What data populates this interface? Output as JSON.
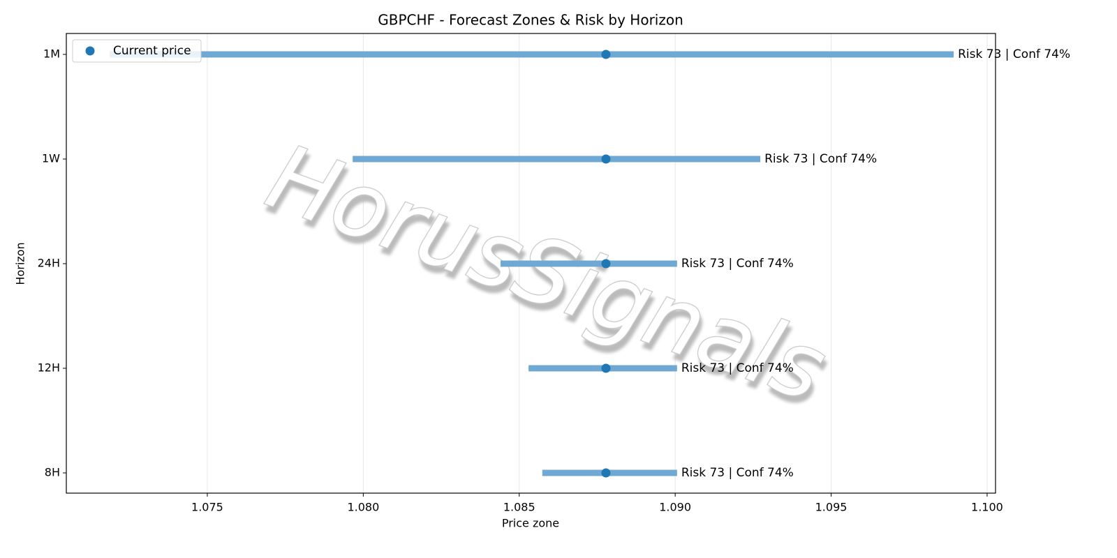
{
  "chart_data": {
    "type": "range",
    "title": "GBPCHF - Forecast Zones & Risk by Horizon",
    "x_label": "Price zone",
    "y_label": "Horizon",
    "watermark": "HorusSignals",
    "categories": [
      "1M",
      "1W",
      "24H",
      "12H",
      "8H"
    ],
    "low": [
      1.07187,
      1.07966,
      1.0844,
      1.0853,
      1.08574
    ],
    "high": [
      1.09893,
      1.09273,
      1.09006,
      1.09006,
      1.09006
    ],
    "color": "#6fa8d3",
    "annotations": [
      "Risk 73 | Conf 74%",
      "Risk 73 | Conf 74%",
      "Risk 73 | Conf 74%",
      "Risk 73 | Conf 74%",
      "Risk 73 | Conf 74%"
    ],
    "series": [
      {
        "name": "Current price",
        "color": "#1f77b4",
        "values": [
          1.08778,
          1.08778,
          1.08778,
          1.08778,
          1.08778
        ]
      }
    ],
    "xlim": [
      1.07048,
      1.10027
    ],
    "xticks": [
      1.075,
      {
        "value": 1.08,
        "label": "1.080"
      },
      1.085,
      {
        "value": 1.09,
        "label": "1.090"
      },
      1.095,
      {
        "value": 1.1,
        "label": "1.100"
      }
    ],
    "grid": true,
    "legend": "upper left"
  }
}
